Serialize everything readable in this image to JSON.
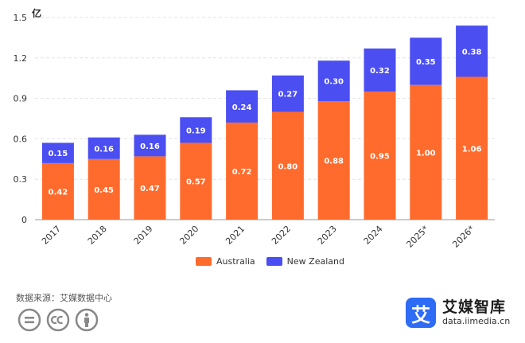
{
  "chart_data": {
    "type": "bar",
    "stacked": true,
    "unit_label": "亿",
    "categories": [
      "2017",
      "2018",
      "2019",
      "2020",
      "2021",
      "2022",
      "2023",
      "2024",
      "2025*",
      "2026*"
    ],
    "series": [
      {
        "name": "Australia",
        "color": "#ff6b2c",
        "values": [
          0.42,
          0.45,
          0.47,
          0.57,
          0.72,
          0.8,
          0.88,
          0.95,
          1.0,
          1.06
        ],
        "labels": [
          "0.42",
          "0.45",
          "0.47",
          "0.57",
          "0.72",
          "0.80",
          "0.88",
          "0.95",
          "1.00",
          "1.06"
        ]
      },
      {
        "name": "New Zealand",
        "color": "#4b4ef0",
        "values": [
          0.15,
          0.16,
          0.16,
          0.19,
          0.24,
          0.27,
          0.3,
          0.32,
          0.35,
          0.38
        ],
        "labels": [
          "0.15",
          "0.16",
          "0.16",
          "0.19",
          "0.24",
          "0.27",
          "0.30",
          "0.32",
          "0.35",
          "0.38"
        ]
      }
    ],
    "yticks": [
      "0",
      "0.3",
      "0.6",
      "0.9",
      "1.2",
      "1.5"
    ],
    "ylim": [
      0,
      1.5
    ],
    "legend": [
      "Australia",
      "New Zealand"
    ],
    "legend_position": "bottom-center"
  },
  "footer": {
    "source": "数据来源：艾媒数据中心",
    "brand_name": "艾媒智库",
    "brand_url": "data.iimedia.cn",
    "brand_logo_char": "艾"
  }
}
